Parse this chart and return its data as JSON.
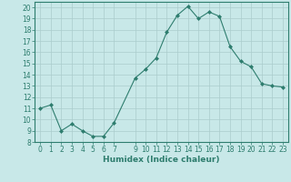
{
  "x": [
    0,
    1,
    2,
    3,
    4,
    5,
    6,
    7,
    9,
    10,
    11,
    12,
    13,
    14,
    15,
    16,
    17,
    18,
    19,
    20,
    21,
    22,
    23
  ],
  "y": [
    11.0,
    11.3,
    9.0,
    9.6,
    9.0,
    8.5,
    8.5,
    9.7,
    13.7,
    14.5,
    15.5,
    17.8,
    19.3,
    20.1,
    19.0,
    19.6,
    19.2,
    16.5,
    15.2,
    14.7,
    13.2,
    13.0,
    12.9
  ],
  "line_color": "#2e7d6e",
  "marker": "D",
  "marker_size": 2.0,
  "bg_color": "#c8e8e8",
  "grid_color": "#aacccc",
  "xlabel": "Humidex (Indice chaleur)",
  "xlim": [
    -0.5,
    23.5
  ],
  "ylim": [
    8,
    20.5
  ],
  "yticks": [
    8,
    9,
    10,
    11,
    12,
    13,
    14,
    15,
    16,
    17,
    18,
    19,
    20
  ],
  "xticks": [
    0,
    1,
    2,
    3,
    4,
    5,
    6,
    7,
    9,
    10,
    11,
    12,
    13,
    14,
    15,
    16,
    17,
    18,
    19,
    20,
    21,
    22,
    23
  ],
  "tick_color": "#2e7d6e",
  "tick_fontsize": 5.5,
  "xlabel_fontsize": 6.5,
  "linewidth": 0.8
}
